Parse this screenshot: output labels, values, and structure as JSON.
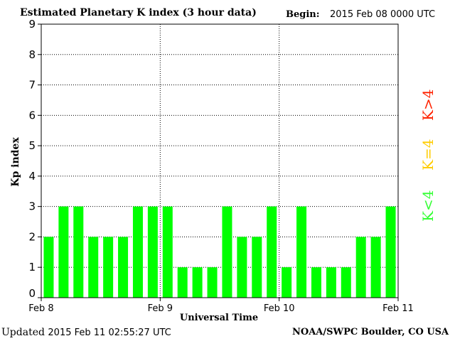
{
  "header": {
    "title": "Estimated Planetary K index (3 hour data)",
    "begin_label": "Begin:",
    "begin_value": "2015 Feb 08 0000 UTC"
  },
  "footer": {
    "updated_label": "Updated",
    "updated_value": "2015 Feb 11 02:55:27 UTC",
    "source": "NOAA/SWPC Boulder, CO USA"
  },
  "legend": {
    "high": {
      "label": "K>4",
      "color": "#ff2200"
    },
    "mid": {
      "label": "K=4",
      "color": "#ffcc00"
    },
    "low": {
      "label": "K<4",
      "color": "#33ff33"
    }
  },
  "chart_data": {
    "type": "bar",
    "title": "Estimated Planetary K index (3 hour data)",
    "xlabel": "Universal Time",
    "ylabel": "Kp index",
    "ylim": [
      0,
      9
    ],
    "yticks": [
      0,
      1,
      2,
      3,
      4,
      5,
      6,
      7,
      8,
      9
    ],
    "xtick_labels": [
      "Feb 8",
      "Feb 9",
      "Feb 10",
      "Feb 11"
    ],
    "grid": true,
    "bar_color": "#00ff00",
    "values": [
      2,
      3,
      3,
      2,
      2,
      2,
      3,
      3,
      3,
      1,
      1,
      1,
      3,
      2,
      2,
      3,
      1,
      3,
      1,
      1,
      1,
      2,
      2,
      3
    ]
  }
}
